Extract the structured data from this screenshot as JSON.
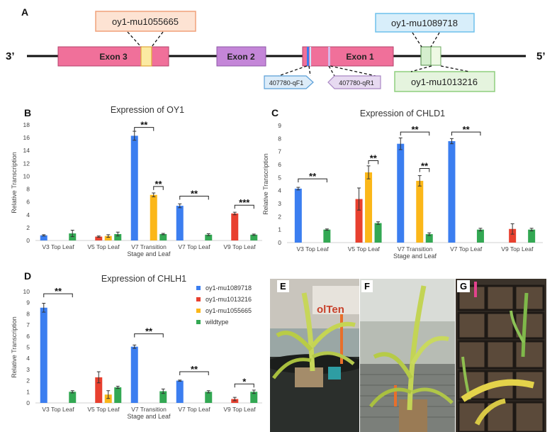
{
  "panels": {
    "A": "A",
    "B": "B",
    "C": "C",
    "D": "D",
    "E": "E",
    "F": "F",
    "G": "G"
  },
  "gene_model": {
    "left_end": "3’",
    "right_end": "5’",
    "exons": [
      "Exon 3",
      "Exon 2",
      "Exon 1"
    ],
    "alleles": {
      "mu1055665": "oy1-mu1055665",
      "mu1089718": "oy1-mu1089718",
      "mu1013216": "oy1-mu1013216"
    },
    "primers": {
      "forward": "407780-qF1",
      "reverse": "407780-qR1"
    },
    "colors": {
      "exon13": "#f0709a",
      "exon2": "#c486d8",
      "allele1055665": "#f6a77b",
      "allele1089718": "#67c1ef",
      "allele1013216": "#8ed07c"
    }
  },
  "legend": {
    "items": [
      "oy1-mu1089718",
      "oy1-mu1013216",
      "oy1-mu1055665",
      "wildtype"
    ]
  },
  "series_colors": [
    "#3b7ef0",
    "#e8402f",
    "#fbb719",
    "#33a853"
  ],
  "chart_data": [
    {
      "type": "bar",
      "title": "Expression of OY1",
      "xlabel": "Stage and Leaf",
      "ylabel": "Relative Transcription",
      "ylim": [
        0,
        18
      ],
      "yticks": [
        "0",
        "2",
        "4",
        "6",
        "8",
        "10",
        "12",
        "14",
        "16",
        "18"
      ],
      "categories": [
        "V3 Top Leaf",
        "V5 Top Leaf",
        "V7 Transition",
        "V7 Top Leaf",
        "V9 Top Leaf"
      ],
      "series": [
        {
          "name": "oy1-mu1089718",
          "values": [
            0.8,
            null,
            16.3,
            5.4,
            null
          ],
          "errors": [
            0.1,
            null,
            0.7,
            0.3,
            null
          ]
        },
        {
          "name": "oy1-mu1013216",
          "values": [
            null,
            0.6,
            null,
            null,
            4.2
          ],
          "errors": [
            null,
            0.1,
            null,
            null,
            0.2
          ]
        },
        {
          "name": "oy1-mu1055665",
          "values": [
            null,
            0.7,
            7.1,
            null,
            null
          ],
          "errors": [
            null,
            0.2,
            0.3,
            null,
            null
          ]
        },
        {
          "name": "wildtype",
          "values": [
            1.1,
            1.0,
            1.0,
            0.9,
            0.9
          ],
          "errors": [
            0.5,
            0.3,
            0.1,
            0.15,
            0.1
          ]
        }
      ],
      "significance": [
        {
          "label": "**",
          "from": [
            2,
            0
          ],
          "to": [
            2,
            2
          ],
          "y": 17.6
        },
        {
          "label": "**",
          "from": [
            2,
            2
          ],
          "to": [
            2,
            3
          ],
          "y": 8.4
        },
        {
          "label": "**",
          "from": [
            3,
            0
          ],
          "to": [
            3,
            3
          ],
          "y": 6.9
        },
        {
          "label": "***",
          "from": [
            4,
            1
          ],
          "to": [
            4,
            3
          ],
          "y": 5.5
        }
      ]
    },
    {
      "type": "bar",
      "title": "Expression of CHLD1",
      "xlabel": "Stage and Leaf",
      "ylabel": "Relative Transcription",
      "ylim": [
        0,
        9
      ],
      "yticks": [
        "0",
        "1",
        "2",
        "3",
        "4",
        "5",
        "6",
        "7",
        "8",
        "9"
      ],
      "categories": [
        "V3 Top Leaf",
        "V5 Top Leaf",
        "V7 Transition",
        "V7 Top Leaf",
        "V9 Top Leaf"
      ],
      "series": [
        {
          "name": "oy1-mu1089718",
          "values": [
            4.15,
            null,
            7.6,
            7.8,
            null
          ],
          "errors": [
            0.1,
            null,
            0.45,
            0.2,
            null
          ]
        },
        {
          "name": "oy1-mu1013216",
          "values": [
            null,
            3.35,
            null,
            null,
            1.05
          ],
          "errors": [
            null,
            0.85,
            null,
            null,
            0.4
          ]
        },
        {
          "name": "oy1-mu1055665",
          "values": [
            null,
            5.4,
            4.75,
            null,
            null
          ],
          "errors": [
            null,
            0.5,
            0.4,
            null,
            null
          ]
        },
        {
          "name": "wildtype",
          "values": [
            1.0,
            1.5,
            0.65,
            1.0,
            1.0
          ],
          "errors": [
            0.05,
            0.1,
            0.1,
            0.1,
            0.1
          ]
        }
      ],
      "significance": [
        {
          "label": "**",
          "from": [
            0,
            0
          ],
          "to": [
            0,
            3
          ],
          "y": 4.9
        },
        {
          "label": "**",
          "from": [
            1,
            2
          ],
          "to": [
            1,
            3
          ],
          "y": 6.3
        },
        {
          "label": "**",
          "from": [
            2,
            0
          ],
          "to": [
            2,
            3
          ],
          "y": 8.5
        },
        {
          "label": "**",
          "from": [
            2,
            2
          ],
          "to": [
            2,
            3
          ],
          "y": 5.7
        },
        {
          "label": "**",
          "from": [
            3,
            0
          ],
          "to": [
            3,
            3
          ],
          "y": 8.5
        }
      ]
    },
    {
      "type": "bar",
      "title": "Expression of CHLH1",
      "xlabel": "Stage and Leaf",
      "ylabel": "Relative Transcription",
      "ylim": [
        0,
        10
      ],
      "yticks": [
        "0",
        "1",
        "2",
        "3",
        "4",
        "5",
        "6",
        "7",
        "8",
        "9",
        "10"
      ],
      "categories": [
        "V3 Top Leaf",
        "V5 Top Leaf",
        "V7 Transition",
        "V7 Top Leaf",
        "V9 Top Leaf"
      ],
      "series": [
        {
          "name": "oy1-mu1089718",
          "values": [
            8.55,
            null,
            5.05,
            2.0,
            null
          ],
          "errors": [
            0.4,
            null,
            0.15,
            0.05,
            null
          ]
        },
        {
          "name": "oy1-mu1013216",
          "values": [
            null,
            2.3,
            null,
            null,
            0.35
          ],
          "errors": [
            null,
            0.5,
            null,
            null,
            0.15
          ]
        },
        {
          "name": "oy1-mu1055665",
          "values": [
            null,
            0.75,
            null,
            null,
            null
          ],
          "errors": [
            null,
            0.35,
            null,
            null,
            null
          ]
        },
        {
          "name": "wildtype",
          "values": [
            1.0,
            1.4,
            1.05,
            1.0,
            1.0
          ],
          "errors": [
            0.1,
            0.1,
            0.2,
            0.1,
            0.15
          ]
        }
      ],
      "significance": [
        {
          "label": "**",
          "from": [
            0,
            0
          ],
          "to": [
            0,
            3
          ],
          "y": 9.8
        },
        {
          "label": "**",
          "from": [
            2,
            0
          ],
          "to": [
            2,
            3
          ],
          "y": 6.2
        },
        {
          "label": "**",
          "from": [
            3,
            0
          ],
          "to": [
            3,
            3
          ],
          "y": 2.8
        },
        {
          "label": "*",
          "from": [
            4,
            1
          ],
          "to": [
            4,
            3
          ],
          "y": 1.7
        }
      ]
    }
  ]
}
